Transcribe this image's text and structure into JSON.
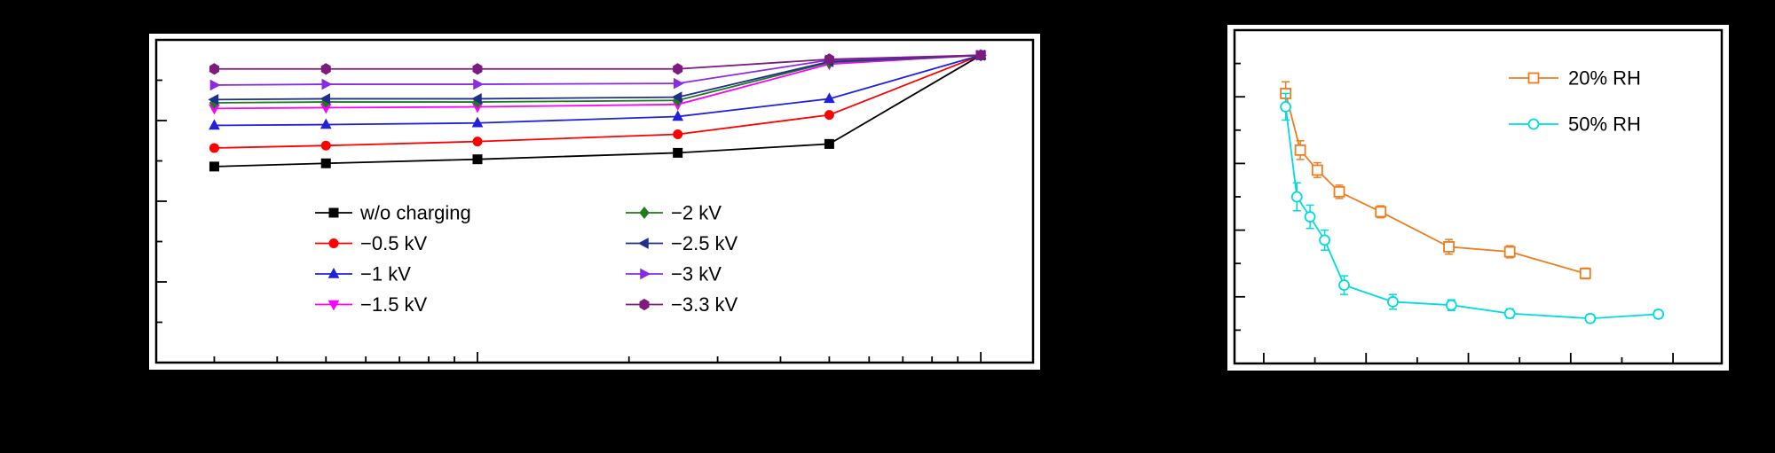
{
  "figure": {
    "background_color": "#000000",
    "panel_color": "#ffffff"
  },
  "chart_data": [
    {
      "id": "charging-voltage-chart",
      "type": "line",
      "title": "",
      "xlabel": "",
      "ylabel": "",
      "x_scale": "log",
      "x": [
        0.3,
        0.5,
        1,
        2.5,
        5,
        10
      ],
      "xlim": [
        0.23,
        12.7
      ],
      "ylim": [
        60,
        100
      ],
      "grid": false,
      "legend": {
        "position": "inside-bottom-center",
        "columns": 2
      },
      "series": [
        {
          "name": "w/o charging",
          "color": "#000000",
          "marker": "square",
          "values": [
            84.3,
            84.7,
            85.2,
            86.0,
            87.1,
            98.1
          ]
        },
        {
          "name": "−0.5 kV",
          "color": "#FF0000",
          "marker": "circle",
          "values": [
            86.6,
            86.9,
            87.4,
            88.3,
            90.7,
            98.1
          ]
        },
        {
          "name": "−1 kV",
          "color": "#2121DC",
          "marker": "triangle-up",
          "values": [
            89.4,
            89.5,
            89.7,
            90.5,
            92.7,
            98.1
          ]
        },
        {
          "name": "−1.5 kV",
          "color": "#FF00FF",
          "marker": "triangle-down",
          "values": [
            91.5,
            91.6,
            91.7,
            92.0,
            97.0,
            98.1
          ]
        },
        {
          "name": "−2 kV",
          "color": "#1E7A1E",
          "marker": "diamond",
          "values": [
            92.2,
            92.3,
            92.3,
            92.5,
            97.2,
            98.1
          ]
        },
        {
          "name": "−2.5 kV",
          "color": "#1F2F8C",
          "marker": "triangle-left",
          "values": [
            92.6,
            92.7,
            92.7,
            92.9,
            97.3,
            98.1
          ]
        },
        {
          "name": "−3 kV",
          "color": "#8A2BE2",
          "marker": "triangle-right",
          "values": [
            94.4,
            94.5,
            94.5,
            94.6,
            97.5,
            98.1
          ]
        },
        {
          "name": "−3.3 kV",
          "color": "#7D1B7E",
          "marker": "hexagon",
          "values": [
            96.4,
            96.4,
            96.4,
            96.4,
            97.6,
            98.1
          ]
        }
      ]
    },
    {
      "id": "humidity-decay-chart",
      "type": "line",
      "title": "",
      "xlabel": "",
      "ylabel": "",
      "x_scale": "linear",
      "xlim": [
        0,
        1
      ],
      "ylim": [
        0,
        1
      ],
      "grid": false,
      "legend": {
        "position": "inside-top-right",
        "columns": 1
      },
      "series": [
        {
          "name": "20% RH",
          "color": "#ED7D1F",
          "marker": "square-open",
          "x": [
            0.105,
            0.135,
            0.17,
            0.215,
            0.3,
            0.44,
            0.565,
            0.72
          ],
          "values": [
            0.81,
            0.64,
            0.58,
            0.515,
            0.455,
            0.35,
            0.335,
            0.27
          ],
          "errors": [
            0.035,
            0.028,
            0.022,
            0.02,
            0.018,
            0.022,
            0.018,
            0.016
          ]
        },
        {
          "name": "50% RH",
          "color": "#00DCDC",
          "marker": "circle-open",
          "x": [
            0.105,
            0.128,
            0.155,
            0.185,
            0.225,
            0.325,
            0.445,
            0.565,
            0.73,
            0.87
          ],
          "values": [
            0.77,
            0.5,
            0.44,
            0.37,
            0.235,
            0.185,
            0.175,
            0.15,
            0.135,
            0.148
          ],
          "errors": [
            0.04,
            0.042,
            0.035,
            0.03,
            0.028,
            0.022,
            0.016,
            0.014,
            0.012,
            0.012
          ]
        }
      ]
    }
  ]
}
